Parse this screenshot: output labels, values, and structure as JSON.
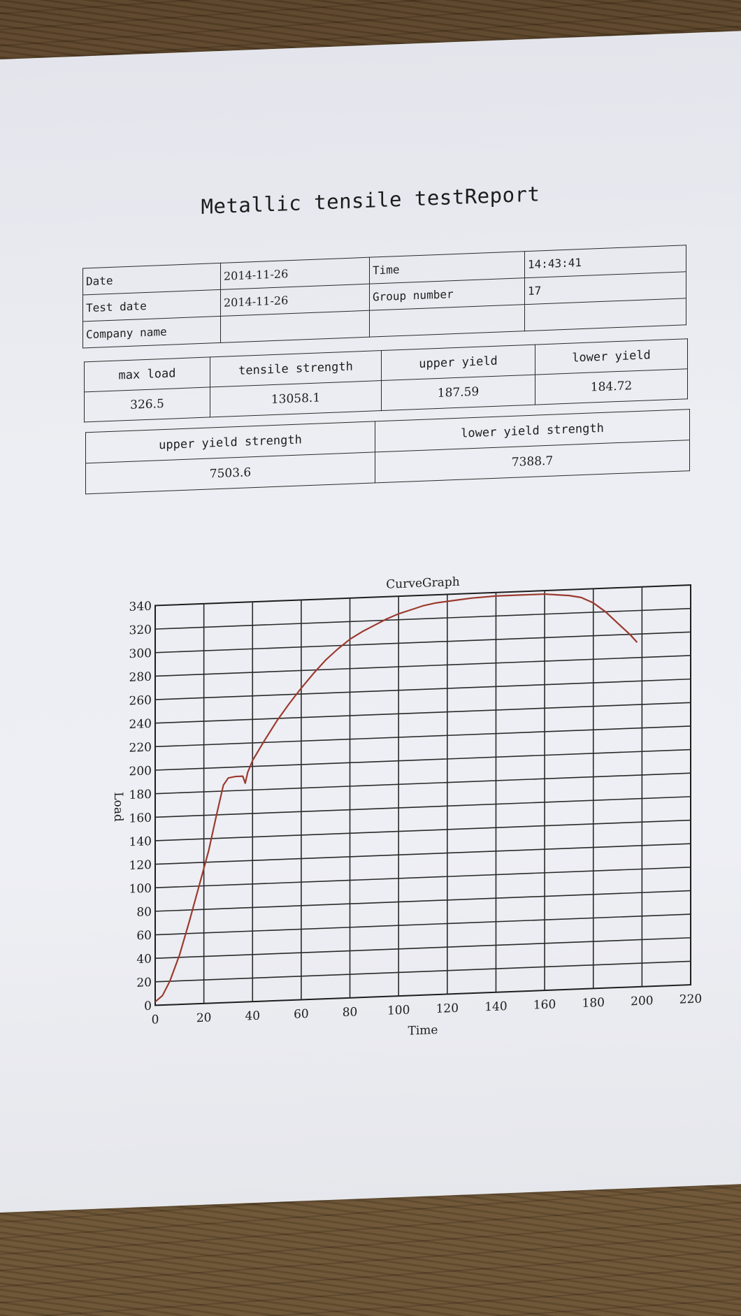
{
  "report": {
    "title": "Metallic tensile testReport",
    "info": {
      "date_label": "Date",
      "date_value": "2014-11-26",
      "time_label": "Time",
      "time_value": "14:43:41",
      "test_date_label": "Test date",
      "test_date_value": "2014-11-26",
      "group_number_label": "Group number",
      "group_number_value": "17",
      "company_name_label": "Company name",
      "company_name_value": ""
    },
    "metrics": {
      "max_load_label": "max load",
      "max_load_value": "326.5",
      "tensile_strength_label": "tensile strength",
      "tensile_strength_value": "13058.1",
      "upper_yield_label": "upper yield",
      "upper_yield_value": "187.59",
      "lower_yield_label": "lower yield",
      "lower_yield_value": "184.72"
    },
    "strength": {
      "upper_yield_strength_label": "upper yield strength",
      "upper_yield_strength_value": "7503.6",
      "lower_yield_strength_label": "lower yield strength",
      "lower_yield_strength_value": "7388.7"
    }
  },
  "chart_data": {
    "type": "line",
    "title": "CurveGraph",
    "xlabel": "Time",
    "ylabel": "Load",
    "xlim": [
      0,
      220
    ],
    "ylim": [
      0,
      340
    ],
    "xticks": [
      0,
      20,
      40,
      60,
      80,
      100,
      120,
      140,
      160,
      180,
      200,
      220
    ],
    "yticks": [
      0,
      20,
      40,
      60,
      80,
      100,
      120,
      140,
      160,
      180,
      200,
      220,
      240,
      260,
      280,
      300,
      320,
      340
    ],
    "grid": true,
    "line_color": "#9b3a2e",
    "series": [
      {
        "x": [
          0,
          3,
          6,
          10,
          14,
          18,
          22,
          25,
          28,
          30,
          33,
          36,
          37,
          38,
          40,
          45,
          50,
          55,
          60,
          65,
          70,
          75,
          80,
          85,
          90,
          95,
          100,
          105,
          110,
          115,
          120,
          125,
          130,
          140,
          150,
          160,
          165,
          170,
          175,
          180,
          185,
          190,
          195,
          198
        ],
        "y": [
          3,
          8,
          20,
          42,
          70,
          100,
          130,
          158,
          185,
          191,
          192,
          192,
          186,
          195,
          205,
          222,
          238,
          252,
          265,
          277,
          288,
          297,
          305,
          311,
          316,
          321,
          325,
          328,
          331,
          333,
          334,
          335,
          336,
          337,
          337,
          337,
          336,
          335,
          333,
          328,
          320,
          310,
          300,
          293
        ]
      }
    ]
  }
}
